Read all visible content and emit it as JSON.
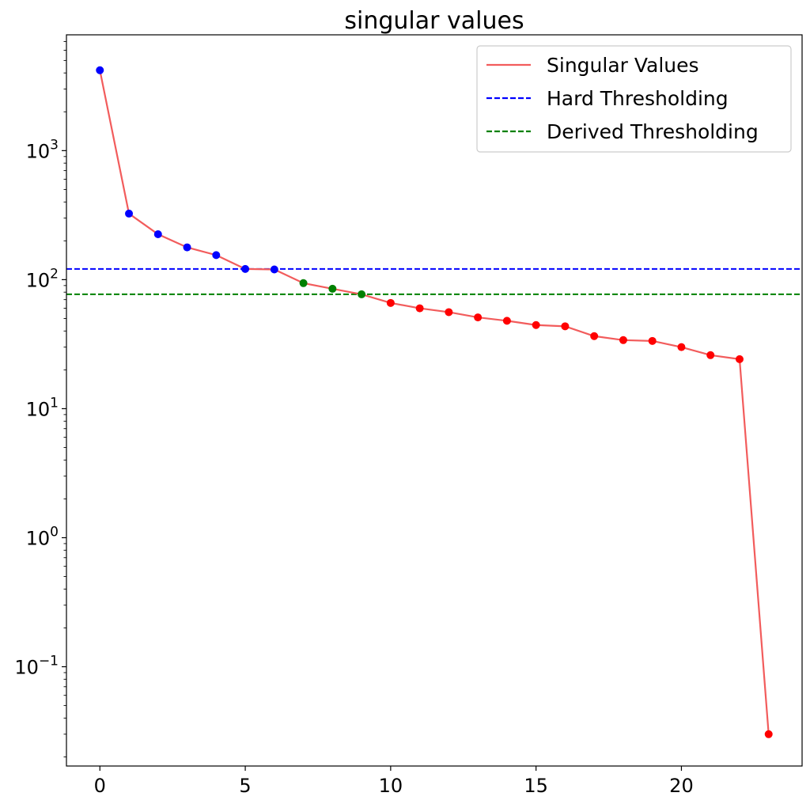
{
  "chart_data": {
    "type": "line",
    "title": "singular values",
    "xlabel": "",
    "ylabel": "",
    "yscale": "log",
    "xlim": [
      -1.15,
      24.15
    ],
    "ylim": [
      0.017,
      7900
    ],
    "x_ticks": [
      0,
      5,
      10,
      15,
      20
    ],
    "x_tick_labels": [
      "0",
      "5",
      "10",
      "15",
      "20"
    ],
    "y_ticks": [
      0.1,
      1,
      10,
      100,
      1000
    ],
    "y_tick_labels": [
      {
        "base": "10",
        "exp": "−1"
      },
      {
        "base": "10",
        "exp": "0"
      },
      {
        "base": "10",
        "exp": "1"
      },
      {
        "base": "10",
        "exp": "2"
      },
      {
        "base": "10",
        "exp": "3"
      }
    ],
    "grid": false,
    "legend_position": "top-right",
    "series": [
      {
        "name": "Singular Values",
        "color": "#f25c5c",
        "x": [
          0,
          1,
          2,
          3,
          4,
          5,
          6,
          7,
          8,
          9,
          10,
          11,
          12,
          13,
          14,
          15,
          16,
          17,
          18,
          19,
          20,
          21,
          22,
          23
        ],
        "values": [
          4200,
          325,
          225,
          178,
          155,
          121,
          120,
          94,
          85,
          77,
          66,
          60,
          56,
          51,
          48,
          44.5,
          43.5,
          36.5,
          34,
          33.5,
          30,
          26,
          24.2,
          0.03
        ],
        "point_colors": [
          "#0000ff",
          "#0000ff",
          "#0000ff",
          "#0000ff",
          "#0000ff",
          "#0000ff",
          "#0000ff",
          "#008000",
          "#008000",
          "#008000",
          "#ff0000",
          "#ff0000",
          "#ff0000",
          "#ff0000",
          "#ff0000",
          "#ff0000",
          "#ff0000",
          "#ff0000",
          "#ff0000",
          "#ff0000",
          "#ff0000",
          "#ff0000",
          "#ff0000",
          "#ff0000"
        ]
      }
    ],
    "threshold_lines": [
      {
        "name": "Hard Thresholding",
        "value": 121,
        "color": "#0000ff",
        "style": "dashed"
      },
      {
        "name": "Derived Thresholding",
        "value": 77,
        "color": "#008000",
        "style": "dashed"
      }
    ]
  }
}
